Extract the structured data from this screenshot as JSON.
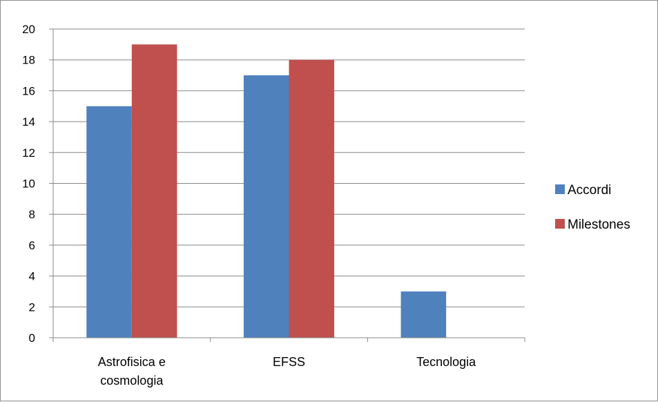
{
  "chart_data": {
    "type": "bar",
    "categories": [
      [
        "Astrofisica e",
        "cosmologia"
      ],
      [
        "EFSS"
      ],
      [
        "Tecnologia"
      ]
    ],
    "series": [
      {
        "name": "Accordi",
        "values": [
          15,
          17,
          3
        ],
        "color": "#4f81bd"
      },
      {
        "name": "Milestones",
        "values": [
          19,
          18,
          0
        ],
        "color": "#c0504d"
      }
    ],
    "yticks": [
      "0",
      "2",
      "4",
      "6",
      "8",
      "10",
      "12",
      "14",
      "16",
      "18",
      "20"
    ],
    "ylim": [
      0,
      20
    ],
    "grid": true,
    "legend_position": "right"
  }
}
